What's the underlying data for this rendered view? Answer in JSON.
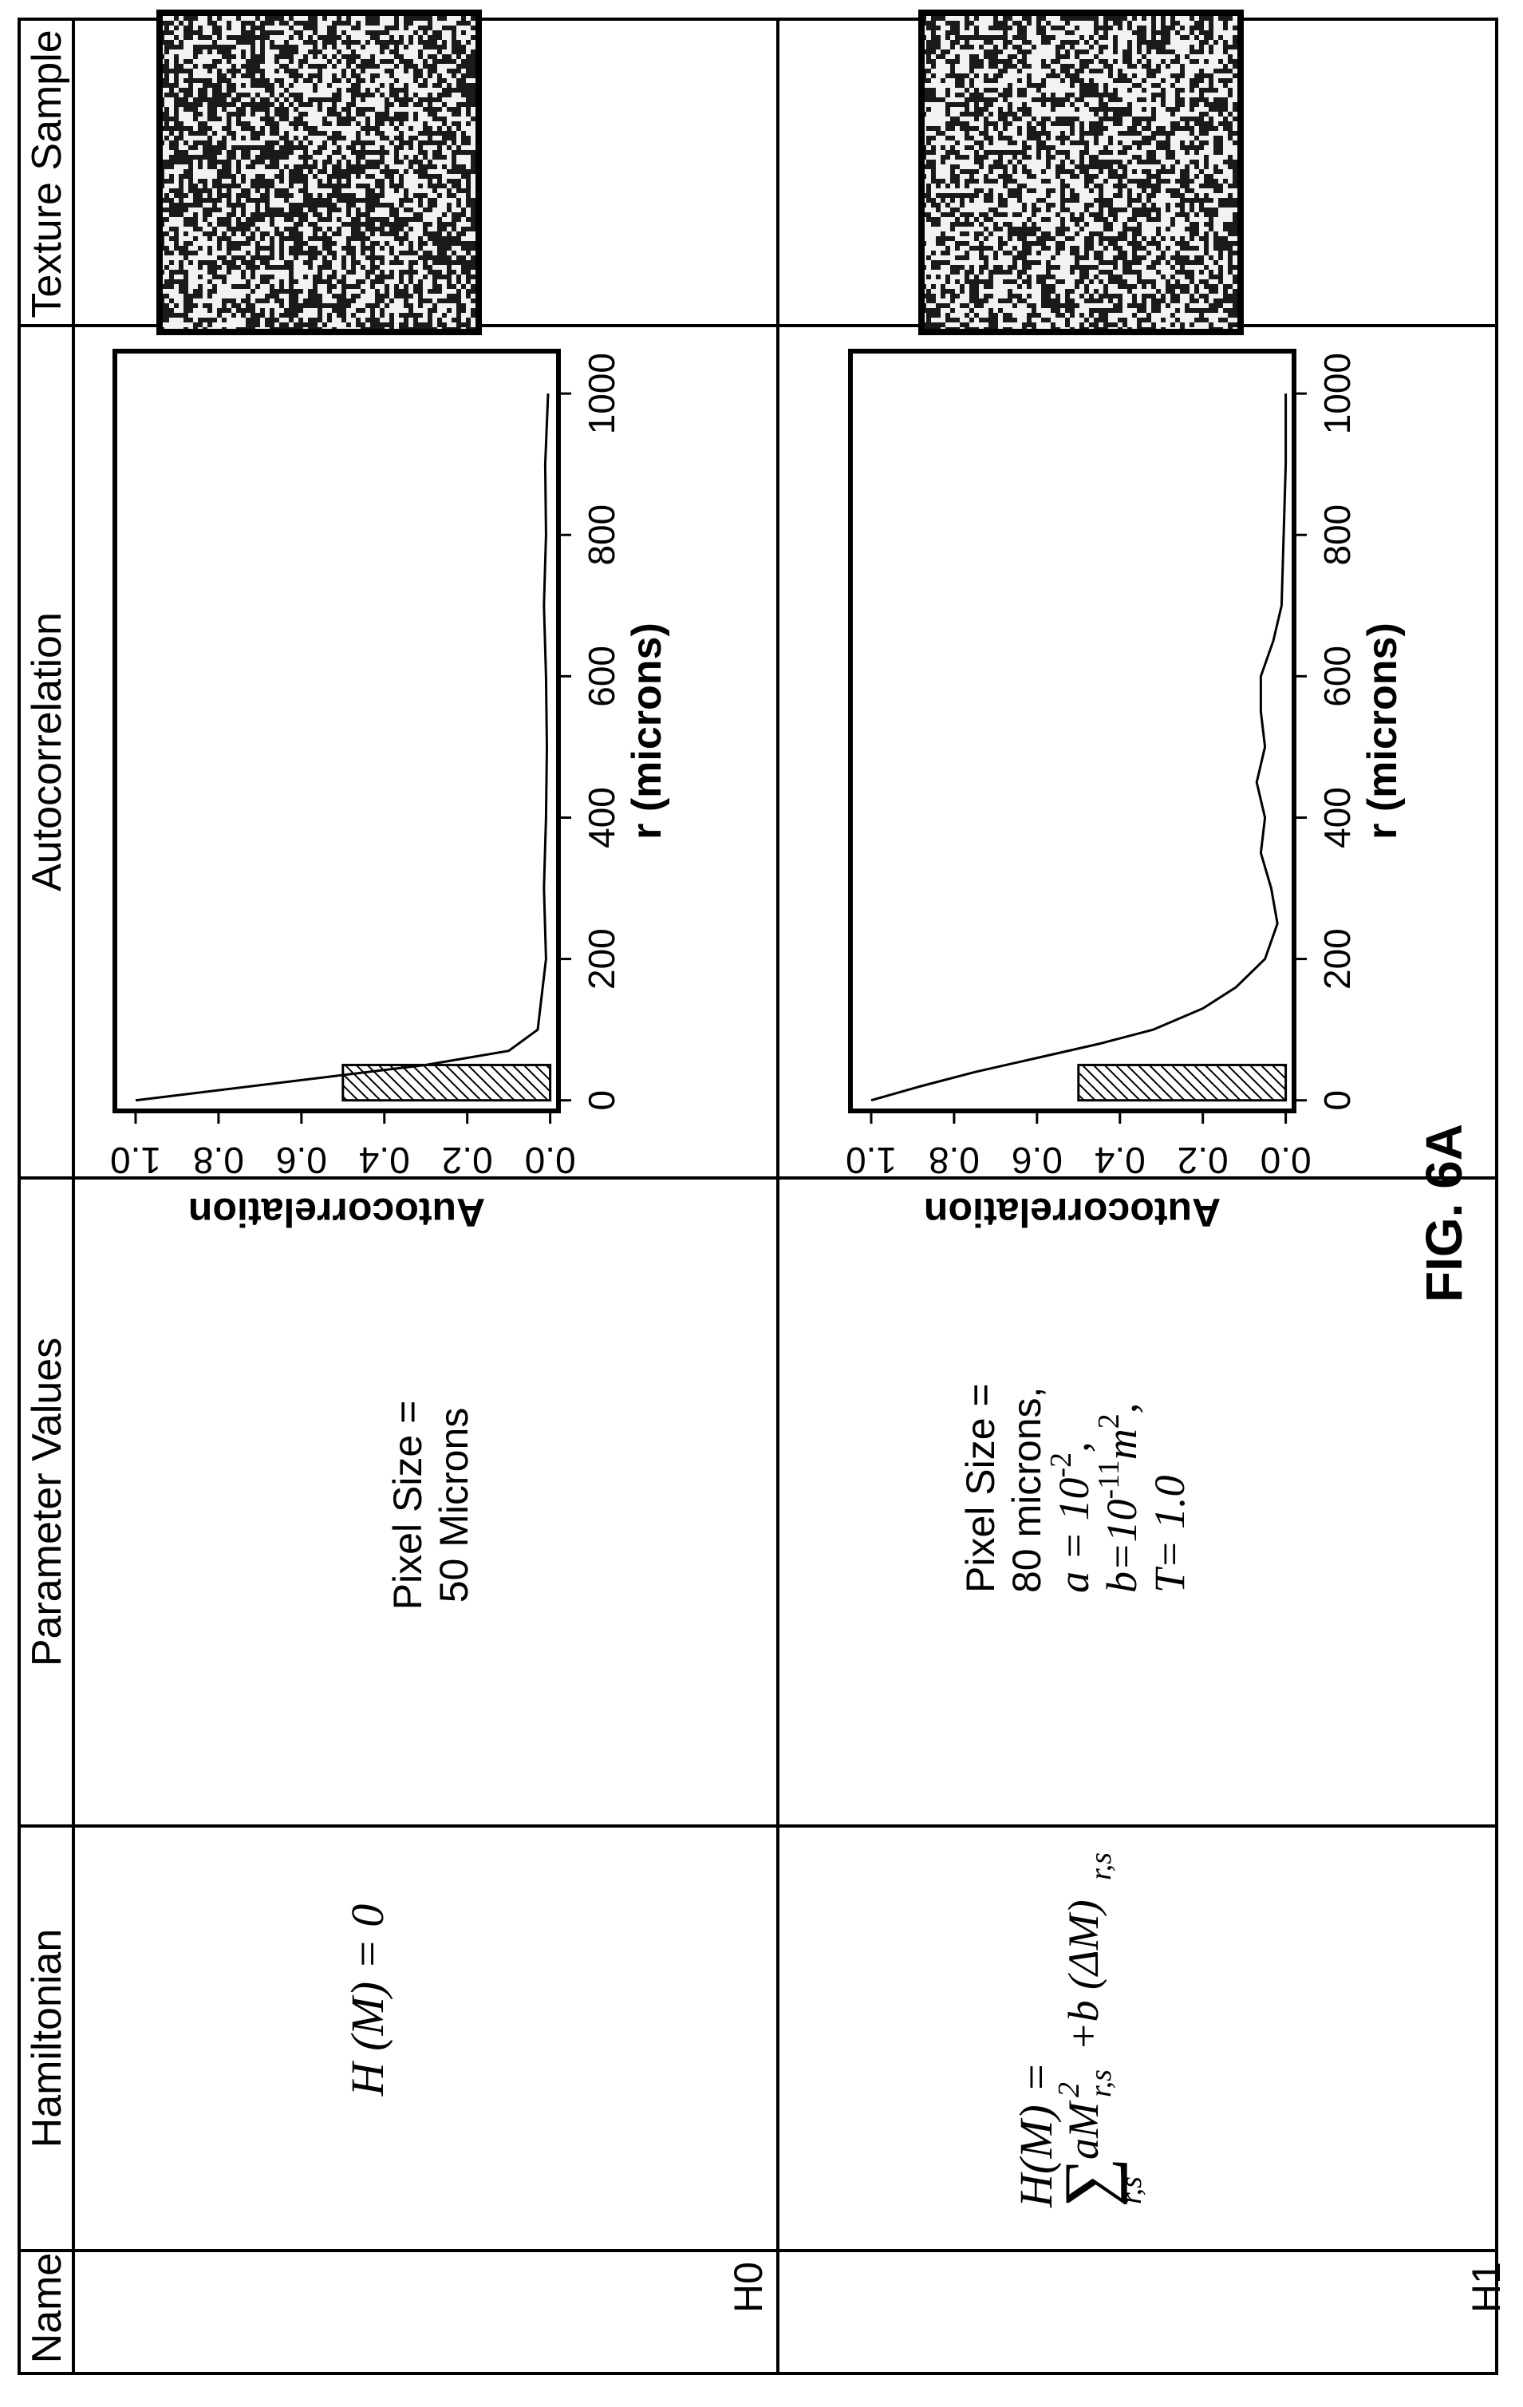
{
  "table": {
    "headers": {
      "name": "Name",
      "hamiltonian": "Hamiltonian",
      "parameters": "Parameter Values",
      "autocorrelation": "Autocorrelation",
      "texture": "Texture Sample"
    },
    "rows": [
      {
        "name": "H0",
        "hamiltonian": "H (M) = 0",
        "parameters": [
          "Pixel Size =",
          "50 Microns"
        ]
      },
      {
        "name": "H1",
        "hamiltonian_line1": "H(M) =",
        "hamiltonian_sum": "∑",
        "hamiltonian_sub": "r,s",
        "hamiltonian_aM": "aM",
        "hamiltonian_aM_sup": "2",
        "hamiltonian_aM_sub": "r,s",
        "hamiltonian_plus_b": "+b (ΔM)",
        "hamiltonian_b_sub": "r,s",
        "param_line1": "Pixel Size =",
        "param_line2": "80 microns,",
        "param_a_base": "a = 10",
        "param_a_exp": "-2",
        "param_a_tail": ",",
        "param_b_base": "b=10",
        "param_b_exp": "-11",
        "param_b_m": "m",
        "param_b_m_exp": "2",
        "param_b_tail": ",",
        "param_T": "T= 1.0"
      }
    ]
  },
  "figure_label": "FIG. 6A",
  "chart_data": [
    {
      "type": "line",
      "xlabel": "r (microns)",
      "ylabel": "Autocorrelation",
      "x_ticks": [
        "0",
        "200",
        "400",
        "600",
        "800",
        "1000"
      ],
      "y_ticks": [
        "0.0",
        "0.2",
        "0.4",
        "0.6",
        "0.8",
        "1.0"
      ],
      "xlim": [
        -15,
        1060
      ],
      "ylim": [
        -0.02,
        1.05
      ],
      "bar": {
        "x0": 0,
        "x1": 50,
        "height": 0.5
      },
      "x": [
        0,
        50,
        70,
        100,
        200,
        300,
        400,
        500,
        600,
        700,
        800,
        900,
        1000
      ],
      "values": [
        1.0,
        0.3,
        0.1,
        0.03,
        0.01,
        0.015,
        0.01,
        0.008,
        0.01,
        0.015,
        0.01,
        0.012,
        0.005
      ]
    },
    {
      "type": "line",
      "xlabel": "r (microns)",
      "ylabel": "Autocorrelation",
      "x_ticks": [
        "0",
        "200",
        "400",
        "600",
        "800",
        "1000"
      ],
      "y_ticks": [
        "0.0",
        "0.2",
        "0.4",
        "0.6",
        "0.8",
        "1.0"
      ],
      "xlim": [
        -15,
        1060
      ],
      "ylim": [
        -0.02,
        1.05
      ],
      "bar": {
        "x0": 0,
        "x1": 50,
        "height": 0.5
      },
      "x": [
        0,
        20,
        40,
        60,
        80,
        100,
        130,
        160,
        200,
        250,
        300,
        350,
        400,
        450,
        500,
        550,
        600,
        650,
        700,
        800,
        900,
        1000
      ],
      "values": [
        1.0,
        0.88,
        0.75,
        0.6,
        0.45,
        0.32,
        0.2,
        0.12,
        0.05,
        0.02,
        0.035,
        0.06,
        0.05,
        0.07,
        0.05,
        0.06,
        0.06,
        0.03,
        0.01,
        0.005,
        0.0,
        0.0
      ]
    }
  ],
  "textures": [
    {
      "name": "texture-sample-h0"
    },
    {
      "name": "texture-sample-h1"
    }
  ]
}
